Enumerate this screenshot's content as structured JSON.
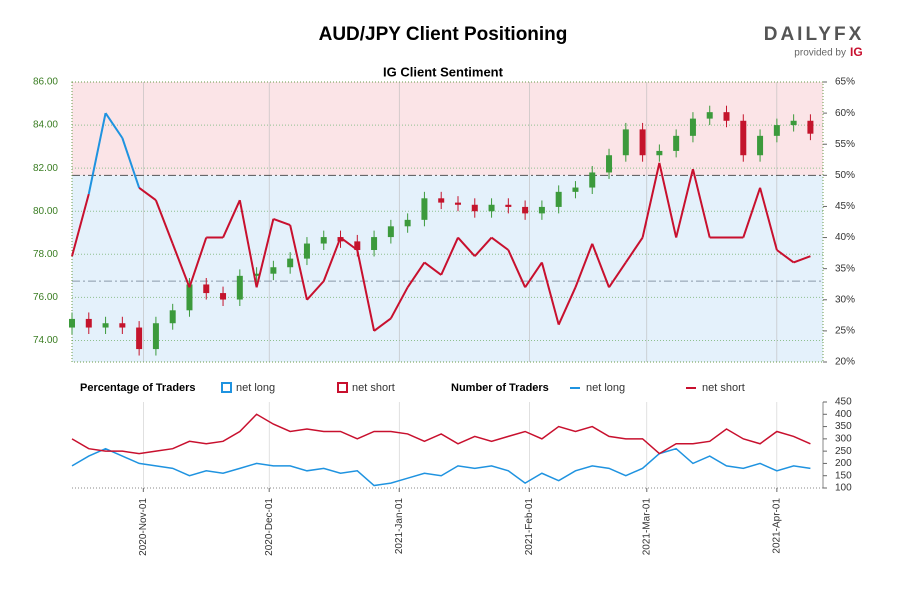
{
  "header": {
    "title": "AUD/JPY Client Positioning",
    "logo": "DAILYFX",
    "provided_by": "provided by",
    "brand": "IG"
  },
  "chart_data": [
    {
      "type": "candlestick",
      "title": "IG Client Sentiment",
      "x": [
        "2020-10-15",
        "2020-10-19",
        "2020-10-23",
        "2020-10-27",
        "2020-10-31",
        "2020-11-04",
        "2020-11-08",
        "2020-11-12",
        "2020-11-16",
        "2020-11-20",
        "2020-11-24",
        "2020-11-28",
        "2020-12-02",
        "2020-12-06",
        "2020-12-10",
        "2020-12-14",
        "2020-12-18",
        "2020-12-22",
        "2020-12-26",
        "2020-12-30",
        "2021-01-03",
        "2021-01-07",
        "2021-01-11",
        "2021-01-15",
        "2021-01-19",
        "2021-01-23",
        "2021-01-27",
        "2021-01-31",
        "2021-02-04",
        "2021-02-08",
        "2021-02-12",
        "2021-02-16",
        "2021-02-20",
        "2021-02-24",
        "2021-02-28",
        "2021-03-04",
        "2021-03-08",
        "2021-03-12",
        "2021-03-16",
        "2021-03-20",
        "2021-03-24",
        "2021-03-28",
        "2021-04-01",
        "2021-04-05",
        "2021-04-09"
      ],
      "open": [
        74.6,
        75.0,
        74.6,
        74.8,
        74.6,
        73.6,
        74.8,
        75.4,
        76.6,
        76.2,
        75.9,
        77.0,
        77.1,
        77.4,
        77.8,
        78.5,
        78.8,
        78.6,
        78.2,
        78.8,
        79.3,
        79.6,
        80.6,
        80.4,
        80.3,
        80.0,
        80.3,
        80.2,
        79.9,
        80.2,
        80.9,
        81.1,
        81.8,
        82.6,
        83.8,
        82.6,
        82.8,
        83.5,
        84.3,
        84.6,
        84.2,
        82.6,
        83.5,
        84.0,
        84.2
      ],
      "high": [
        75.3,
        75.3,
        75.1,
        75.1,
        74.9,
        75.1,
        75.7,
        76.9,
        76.9,
        76.5,
        77.3,
        77.4,
        77.7,
        78.1,
        78.8,
        79.1,
        79.1,
        78.9,
        79.1,
        79.6,
        79.9,
        80.9,
        80.9,
        80.7,
        80.6,
        80.6,
        80.6,
        80.5,
        80.5,
        81.2,
        81.4,
        82.1,
        82.9,
        84.1,
        84.1,
        83.1,
        83.8,
        84.6,
        84.9,
        84.9,
        84.5,
        83.8,
        84.3,
        84.5,
        84.5
      ],
      "low": [
        74.3,
        74.3,
        74.3,
        74.3,
        73.3,
        73.3,
        74.5,
        75.1,
        75.9,
        75.6,
        75.6,
        76.7,
        76.8,
        77.1,
        77.5,
        78.2,
        78.3,
        77.9,
        77.9,
        78.5,
        79.0,
        79.3,
        80.1,
        80.0,
        79.7,
        79.7,
        79.9,
        79.6,
        79.6,
        79.9,
        80.6,
        80.8,
        81.5,
        82.3,
        82.3,
        82.3,
        82.5,
        83.2,
        84.0,
        83.9,
        82.3,
        82.3,
        83.2,
        83.7,
        83.3
      ],
      "close": [
        75.0,
        74.6,
        74.8,
        74.6,
        73.6,
        74.8,
        75.4,
        76.6,
        76.2,
        75.9,
        77.0,
        77.1,
        77.4,
        77.8,
        78.5,
        78.8,
        78.6,
        78.2,
        78.8,
        79.3,
        79.6,
        80.6,
        80.4,
        80.3,
        80.0,
        80.3,
        80.2,
        79.9,
        80.2,
        80.9,
        81.1,
        81.8,
        82.6,
        83.8,
        82.6,
        82.8,
        83.5,
        84.3,
        84.6,
        84.2,
        82.6,
        83.5,
        84.0,
        84.2,
        83.6
      ],
      "up_color": "#3c9a3c",
      "down_color": "#c4142c",
      "sentiment": {
        "axis": "y2",
        "threshold": 50,
        "values": [
          37,
          47,
          60,
          56,
          48,
          46,
          39,
          32,
          40,
          40,
          46,
          32,
          43,
          42,
          30,
          33,
          40,
          38,
          25,
          27,
          32,
          36,
          34,
          40,
          37,
          40,
          38,
          32,
          36,
          26,
          32,
          39,
          32,
          36,
          40,
          52,
          40,
          51,
          40,
          40,
          40,
          48,
          38,
          36,
          37
        ]
      },
      "legend": {
        "title": "Percentage of Traders",
        "items": [
          {
            "name": "net long",
            "color": "#1f93e0"
          },
          {
            "name": "net short",
            "color": "#c8102e"
          }
        ]
      },
      "reference_lines": [
        {
          "value": 50,
          "color": "#555555"
        },
        {
          "value": 33,
          "color": "#8a9aaa"
        }
      ],
      "xlim": [
        "2020-10-15",
        "2021-04-12"
      ],
      "ylim": [
        73,
        86
      ],
      "yticks": [
        {
          "value": 74,
          "label": "74.00"
        },
        {
          "value": 76,
          "label": "76.00"
        },
        {
          "value": 78,
          "label": "78.00"
        },
        {
          "value": 80,
          "label": "80.00"
        },
        {
          "value": 82,
          "label": "82.00"
        },
        {
          "value": 84,
          "label": "84.00"
        },
        {
          "value": 86,
          "label": "86.00"
        }
      ],
      "y2lim": [
        20,
        65
      ],
      "y2ticks": [
        {
          "value": 20,
          "label": "20%"
        },
        {
          "value": 25,
          "label": "25%"
        },
        {
          "value": 30,
          "label": "30%"
        },
        {
          "value": 35,
          "label": "35%"
        },
        {
          "value": 40,
          "label": "40%"
        },
        {
          "value": 45,
          "label": "45%"
        },
        {
          "value": 50,
          "label": "50%"
        },
        {
          "value": 55,
          "label": "55%"
        },
        {
          "value": 60,
          "label": "60%"
        },
        {
          "value": 65,
          "label": "65%"
        }
      ],
      "band_colors": {
        "above": "#fbe4e7",
        "below": "#e4f1fb"
      },
      "grid": true
    },
    {
      "type": "line",
      "legend_title": "Number of Traders",
      "x": [
        "2020-10-15",
        "2020-10-19",
        "2020-10-23",
        "2020-10-27",
        "2020-10-31",
        "2020-11-04",
        "2020-11-08",
        "2020-11-12",
        "2020-11-16",
        "2020-11-20",
        "2020-11-24",
        "2020-11-28",
        "2020-12-02",
        "2020-12-06",
        "2020-12-10",
        "2020-12-14",
        "2020-12-18",
        "2020-12-22",
        "2020-12-26",
        "2020-12-30",
        "2021-01-03",
        "2021-01-07",
        "2021-01-11",
        "2021-01-15",
        "2021-01-19",
        "2021-01-23",
        "2021-01-27",
        "2021-01-31",
        "2021-02-04",
        "2021-02-08",
        "2021-02-12",
        "2021-02-16",
        "2021-02-20",
        "2021-02-24",
        "2021-02-28",
        "2021-03-04",
        "2021-03-08",
        "2021-03-12",
        "2021-03-16",
        "2021-03-20",
        "2021-03-24",
        "2021-03-28",
        "2021-04-01",
        "2021-04-05",
        "2021-04-09"
      ],
      "series": [
        {
          "name": "net long",
          "color": "#1f93e0",
          "values": [
            190,
            230,
            260,
            230,
            200,
            190,
            180,
            150,
            170,
            160,
            180,
            200,
            190,
            190,
            170,
            180,
            160,
            170,
            110,
            120,
            140,
            160,
            150,
            190,
            180,
            190,
            170,
            120,
            160,
            130,
            170,
            190,
            180,
            150,
            180,
            240,
            260,
            200,
            230,
            190,
            180,
            200,
            170,
            190,
            180
          ]
        },
        {
          "name": "net short",
          "color": "#c8102e",
          "values": [
            300,
            260,
            250,
            250,
            240,
            250,
            260,
            290,
            280,
            290,
            330,
            400,
            360,
            330,
            340,
            330,
            330,
            300,
            330,
            330,
            320,
            290,
            320,
            280,
            310,
            290,
            310,
            330,
            300,
            350,
            330,
            350,
            310,
            300,
            300,
            240,
            280,
            280,
            290,
            340,
            300,
            280,
            330,
            310,
            280
          ]
        }
      ],
      "xlim": [
        "2020-10-15",
        "2021-04-12"
      ],
      "xticks": [
        {
          "value": "2020-11-01",
          "label": "2020-Nov-01"
        },
        {
          "value": "2020-12-01",
          "label": "2020-Dec-01"
        },
        {
          "value": "2021-01-01",
          "label": "2021-Jan-01"
        },
        {
          "value": "2021-02-01",
          "label": "2021-Feb-01"
        },
        {
          "value": "2021-03-01",
          "label": "2021-Mar-01"
        },
        {
          "value": "2021-04-01",
          "label": "2021-Apr-01"
        }
      ],
      "ylim": [
        100,
        450
      ],
      "yticks": [
        100,
        150,
        200,
        250,
        300,
        350,
        400,
        450
      ],
      "grid": true
    }
  ]
}
